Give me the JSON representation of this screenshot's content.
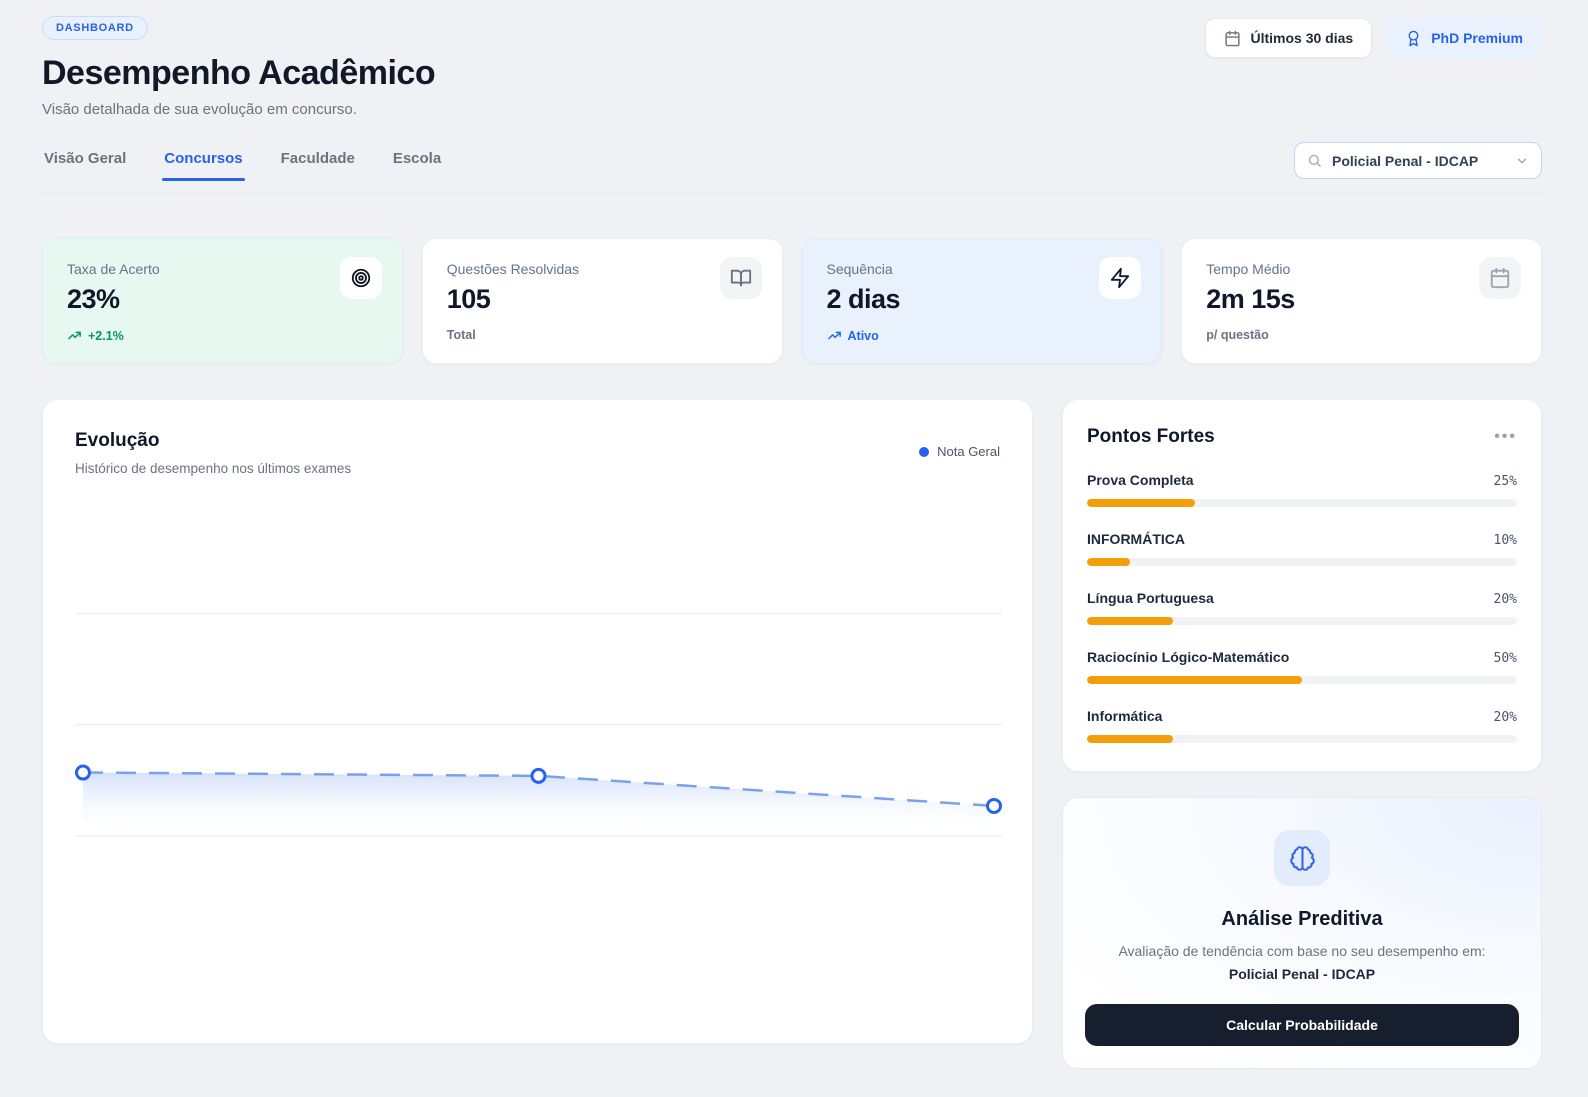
{
  "colors": {
    "accent": "#2563eb",
    "green": "#059669",
    "orange": "#f59e0b",
    "dark_button": "#171e2e",
    "page_bg": "#f0f1f4"
  },
  "header": {
    "badge": "DASHBOARD",
    "title": "Desempenho Acadêmico",
    "subtitle": "Visão detalhada de sua evolução em concurso.",
    "period_button": "Últimos 30 dias",
    "premium_button": "PhD Premium"
  },
  "tabs": [
    {
      "label": "Visão Geral",
      "active": false
    },
    {
      "label": "Concursos",
      "active": true
    },
    {
      "label": "Faculdade",
      "active": false
    },
    {
      "label": "Escola",
      "active": false
    }
  ],
  "exam_select": {
    "value": "Policial Penal - IDCAP"
  },
  "stat_cards": [
    {
      "label": "Taxa de Acerto",
      "value": "23%",
      "sub": "+2.1%",
      "icon": "target-icon",
      "variant": "green"
    },
    {
      "label": "Questões Resolvidas",
      "value": "105",
      "sub": "Total",
      "icon": "book-open-icon",
      "variant": "white"
    },
    {
      "label": "Sequência",
      "value": "2 dias",
      "sub": "Ativo",
      "icon": "zap-icon",
      "variant": "blue"
    },
    {
      "label": "Tempo Médio",
      "value": "2m 15s",
      "sub": "p/ questão",
      "icon": "calendar-icon",
      "variant": "white"
    }
  ],
  "evolution": {
    "title": "Evolução",
    "subtitle": "Histórico de desempenho nos últimos exames",
    "legend": "Nota Geral"
  },
  "chart_data": {
    "type": "area",
    "title": "Evolução",
    "series": [
      {
        "name": "Nota Geral",
        "x": [
          1,
          2,
          3
        ],
        "values": [
          19,
          18,
          9
        ]
      }
    ],
    "ylim": [
      0,
      100
    ],
    "grid": true,
    "tick_labels_visible": false,
    "legend_position": "top-right",
    "line_style": "dashed",
    "colors": {
      "line": "#7aa2ec",
      "point_stroke": "#2563eb",
      "fill_top": "#aac4f2"
    }
  },
  "strengths": {
    "title": "Pontos Fortes",
    "menu": "•••",
    "items": [
      {
        "label": "Prova Completa",
        "percent": "25%",
        "value": 25
      },
      {
        "label": "INFORMÁTICA",
        "percent": "10%",
        "value": 10
      },
      {
        "label": "Língua Portuguesa",
        "percent": "20%",
        "value": 20
      },
      {
        "label": "Raciocínio Lógico-Matemático",
        "percent": "50%",
        "value": 50
      },
      {
        "label": "Informática",
        "percent": "20%",
        "value": 20
      }
    ]
  },
  "predictive": {
    "title": "Análise Preditiva",
    "description": "Avaliação de tendência com base no seu desempenho em:",
    "exam": "Policial Penal - IDCAP",
    "button": "Calcular Probabilidade"
  }
}
